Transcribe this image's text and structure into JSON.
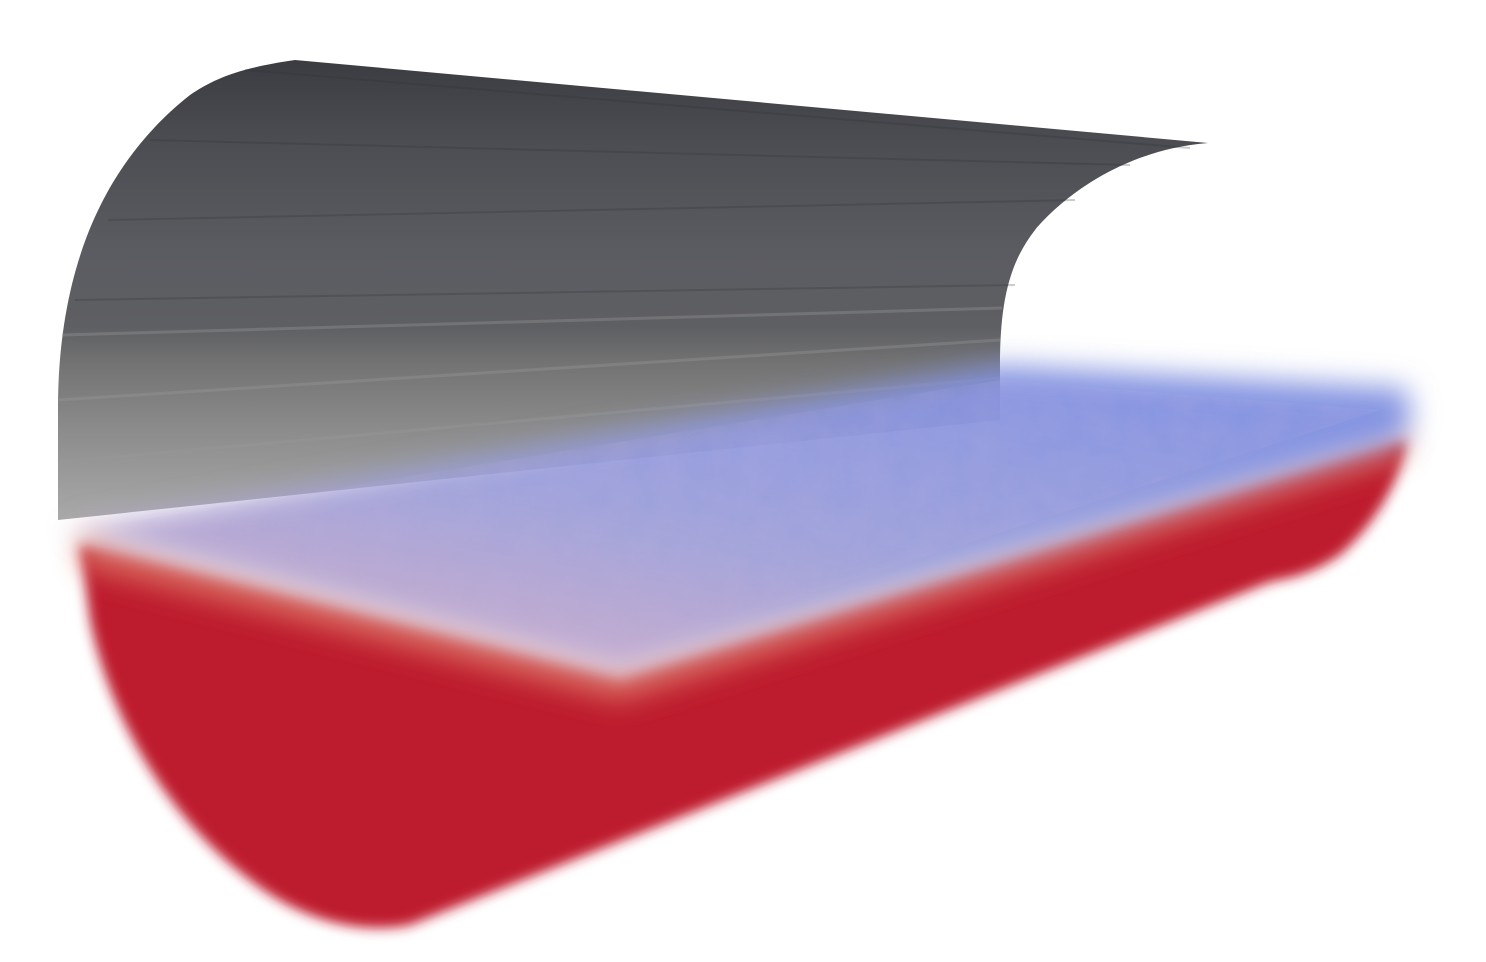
{
  "scene": {
    "subject": "half-cut-cylinder-volume-render",
    "colors": {
      "background": "#ffffff",
      "shell_dark": "#3e3f44",
      "shell_mid": "#5b5c61",
      "shell_light": "#8a8a8a",
      "fluid_top": "#7f8fd8",
      "fluid_mid": "#b7a3c9",
      "fluid_body": "#bd1f2e",
      "fluid_edge": "#e8856e"
    }
  }
}
